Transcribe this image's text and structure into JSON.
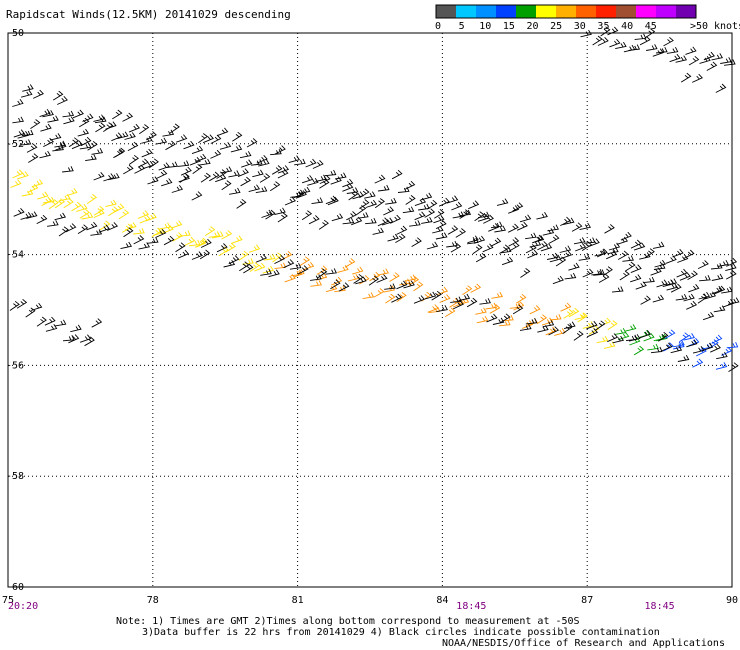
{
  "title": "Rapidscat Winds(12.5KM) 20141029 descending",
  "footer": {
    "note_line1": "Note: 1) Times are GMT 2)Times along bottom correspond to measurement at -50S",
    "note_line2": "3)Data buffer is 22 hrs from 20141029 4) Black circles indicate possible contamination",
    "credit": "NOAA/NESDIS/Office of Research and Applications"
  },
  "chart_data": {
    "type": "wind-barbs",
    "x_ticks": [
      75,
      78,
      81,
      84,
      87,
      90
    ],
    "y_ticks": [
      -50,
      -52,
      -54,
      -56,
      -58,
      -60
    ],
    "xlim": [
      75,
      90
    ],
    "ylim": [
      -60,
      -50
    ],
    "grid": true,
    "time_labels": [
      {
        "lon": 75,
        "label": "20:20"
      },
      {
        "lon": 84.6,
        "label": "18:45"
      },
      {
        "lon": 88.5,
        "label": "18:45"
      }
    ],
    "legend": {
      "unit": "knots",
      "placement": "top-right",
      "labels": [
        "0",
        "5",
        "10",
        "15",
        "20",
        "25",
        "30",
        "35",
        "40",
        "45",
        ">50"
      ],
      "colors": [
        "#555555",
        "#00c8ff",
        "#0090ff",
        "#0040ff",
        "#00a000",
        "#ffff00",
        "#ffb000",
        "#ff6000",
        "#ff2000",
        "#a05030",
        "#ff00ff",
        "#c000ff",
        "#7000b0"
      ]
    },
    "swaths": [
      {
        "name": "upper",
        "segments": [
          {
            "lon": [
              75,
              90
            ],
            "lat": [
              -51.2,
              -54.4
            ],
            "width": 0.55,
            "speed": 10,
            "barbs": 110
          },
          {
            "lon": [
              75,
              90
            ],
            "lat": [
              -51.6,
              -54.7
            ],
            "width": 0.55,
            "speed": 10,
            "barbs": 110
          },
          {
            "lon": [
              75,
              90
            ],
            "lat": [
              -52.0,
              -55.0
            ],
            "width": 0.6,
            "speed": 10,
            "barbs": 110
          }
        ]
      },
      {
        "name": "lower",
        "segments": [
          {
            "lon": [
              75,
              77.5
            ],
            "lat": [
              -52.8,
              -53.5
            ],
            "width": 0.5,
            "speed": 22,
            "barbs": 28
          },
          {
            "lon": [
              77.5,
              80.5
            ],
            "lat": [
              -53.5,
              -54.2
            ],
            "width": 0.5,
            "speed": 22,
            "barbs": 30
          },
          {
            "lon": [
              80.5,
              86.5
            ],
            "lat": [
              -54.2,
              -55.3
            ],
            "width": 0.55,
            "speed": 27,
            "barbs": 60
          },
          {
            "lon": [
              86.5,
              87.5
            ],
            "lat": [
              -55.3,
              -55.5
            ],
            "width": 0.45,
            "speed": 22,
            "barbs": 10
          },
          {
            "lon": [
              87.5,
              88.5
            ],
            "lat": [
              -55.5,
              -55.7
            ],
            "width": 0.45,
            "speed": 17,
            "barbs": 10
          },
          {
            "lon": [
              88.5,
              90
            ],
            "lat": [
              -55.7,
              -55.9
            ],
            "width": 0.5,
            "speed": 13,
            "barbs": 16
          },
          {
            "lon": [
              75,
              90
            ],
            "lat": [
              -53.3,
              -56.0
            ],
            "width": 0.35,
            "speed": 10,
            "barbs": 90
          },
          {
            "lon": [
              75,
              76.8
            ],
            "lat": [
              -55.1,
              -55.5
            ],
            "width": 0.45,
            "speed": 10,
            "barbs": 14
          }
        ]
      },
      {
        "name": "corner",
        "segments": [
          {
            "lon": [
              86.8,
              90
            ],
            "lat": [
              -49.9,
              -50.9
            ],
            "width": 0.7,
            "speed": 10,
            "barbs": 34
          }
        ]
      }
    ]
  }
}
